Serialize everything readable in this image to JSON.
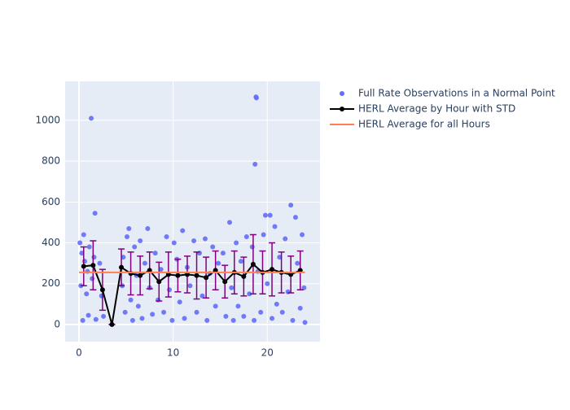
{
  "chart_data": {
    "type": "scatter",
    "xlim": [
      -1.47,
      25.6
    ],
    "ylim": [
      -84,
      1191
    ],
    "xticks": [
      0,
      10,
      20
    ],
    "yticks": [
      0,
      200,
      400,
      600,
      800,
      1000
    ],
    "grid": true,
    "series": [
      {
        "name": "Full Rate Observations in a Normal Point",
        "type": "scatter",
        "color": "#636efa",
        "x": [
          0.1,
          0.2,
          0.3,
          0.4,
          0.5,
          0.6,
          0.8,
          0.9,
          1.0,
          1.1,
          1.3,
          1.4,
          1.6,
          1.7,
          1.8,
          2.2,
          2.4,
          2.6,
          4.6,
          4.7,
          4.9,
          5.1,
          5.3,
          5.5,
          5.7,
          5.9,
          6.1,
          6.3,
          6.5,
          6.7,
          7.0,
          7.3,
          7.5,
          7.8,
          8.1,
          8.4,
          8.7,
          9.0,
          9.3,
          9.6,
          9.9,
          10.1,
          10.4,
          10.7,
          11.0,
          11.2,
          11.5,
          11.8,
          12.2,
          12.5,
          12.8,
          13.1,
          13.4,
          13.6,
          13.9,
          14.2,
          14.5,
          14.8,
          15.3,
          15.6,
          16.0,
          16.2,
          16.4,
          16.7,
          16.9,
          17.2,
          17.5,
          17.8,
          18.1,
          18.4,
          18.6,
          18.7,
          18.8,
          18.85,
          19.0,
          19.3,
          19.6,
          19.8,
          20.0,
          20.3,
          20.5,
          20.8,
          21.0,
          21.3,
          21.6,
          21.9,
          22.2,
          22.5,
          22.7,
          23.0,
          23.2,
          23.5,
          23.7,
          23.9,
          24.0
        ],
        "values": [
          400,
          190,
          350,
          20,
          440,
          310,
          150,
          260,
          45,
          380,
          1010,
          225,
          330,
          545,
          25,
          300,
          140,
          40,
          190,
          330,
          60,
          430,
          470,
          120,
          20,
          380,
          240,
          90,
          410,
          30,
          300,
          470,
          180,
          50,
          350,
          120,
          270,
          60,
          430,
          170,
          20,
          400,
          320,
          110,
          460,
          30,
          280,
          190,
          410,
          60,
          350,
          140,
          420,
          20,
          250,
          380,
          90,
          300,
          350,
          40,
          500,
          180,
          20,
          400,
          90,
          310,
          40,
          430,
          150,
          380,
          20,
          785,
          1115,
          1110,
          260,
          60,
          440,
          535,
          200,
          535,
          30,
          480,
          100,
          330,
          60,
          420,
          160,
          585,
          20,
          525,
          300,
          80,
          440,
          180,
          10
        ]
      },
      {
        "name": "HERL Average by Hour with STD",
        "type": "line",
        "color": "#000000",
        "error_color": "#800080",
        "x": [
          0.5,
          1.5,
          2.5,
          3.5,
          4.5,
          5.5,
          6.5,
          7.5,
          8.5,
          9.5,
          10.5,
          11.5,
          12.5,
          13.5,
          14.5,
          15.5,
          16.5,
          17.5,
          18.5,
          19.5,
          20.5,
          21.5,
          22.5,
          23.5
        ],
        "values": [
          285,
          290,
          170,
          0,
          280,
          250,
          240,
          265,
          210,
          245,
          240,
          245,
          240,
          230,
          265,
          210,
          255,
          235,
          295,
          255,
          270,
          255,
          245,
          265
        ],
        "error": [
          95,
          120,
          100,
          0,
          90,
          105,
          95,
          90,
          95,
          110,
          80,
          90,
          115,
          100,
          95,
          80,
          105,
          95,
          145,
          105,
          130,
          100,
          90,
          95
        ]
      },
      {
        "name": "HERL Average for all Hours",
        "type": "line",
        "color": "#ff7f50",
        "x": [
          0,
          24
        ],
        "values": [
          255,
          255
        ]
      }
    ]
  }
}
